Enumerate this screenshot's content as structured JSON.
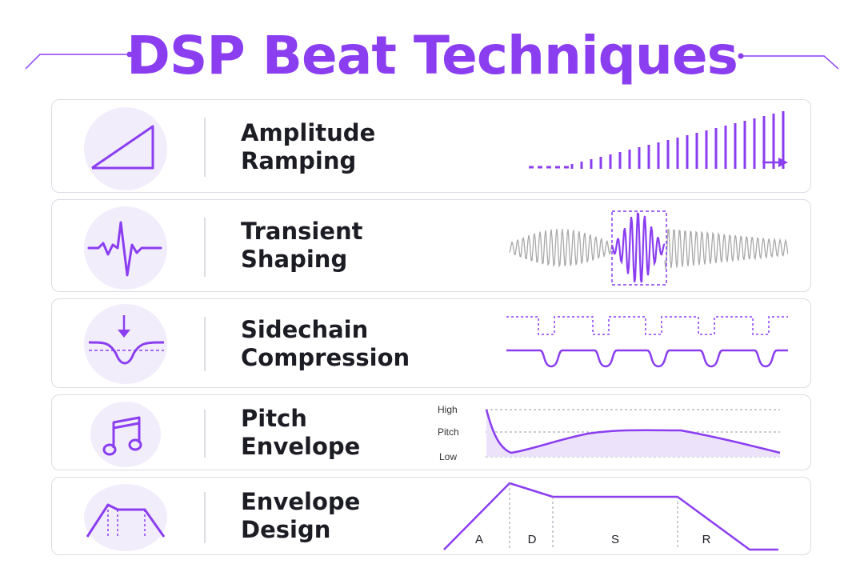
{
  "title": "DSP Beat Techniques",
  "colors": {
    "accent": "#8a3ef0",
    "text": "#1c1c24",
    "muted": "#a8a8a8",
    "iconBg": "#f2edfb"
  },
  "techniques": [
    {
      "line1": "Amplitude",
      "line2": "Ramping",
      "icon": "ramp-triangle-icon"
    },
    {
      "line1": "Transient",
      "line2": "Shaping",
      "icon": "transient-pulse-icon"
    },
    {
      "line1": "Sidechain",
      "line2": "Compression",
      "icon": "compression-dip-icon"
    },
    {
      "line1": "Pitch",
      "line2": "Envelope",
      "icon": "music-note-icon"
    },
    {
      "line1": "Envelope",
      "line2": "Design",
      "icon": "adsr-envelope-icon"
    }
  ],
  "pitch_axis": {
    "high": "High",
    "pitch": "Pitch",
    "low": "Low"
  },
  "adsr_phases": {
    "a": "A",
    "d": "D",
    "s": "S",
    "r": "R"
  }
}
